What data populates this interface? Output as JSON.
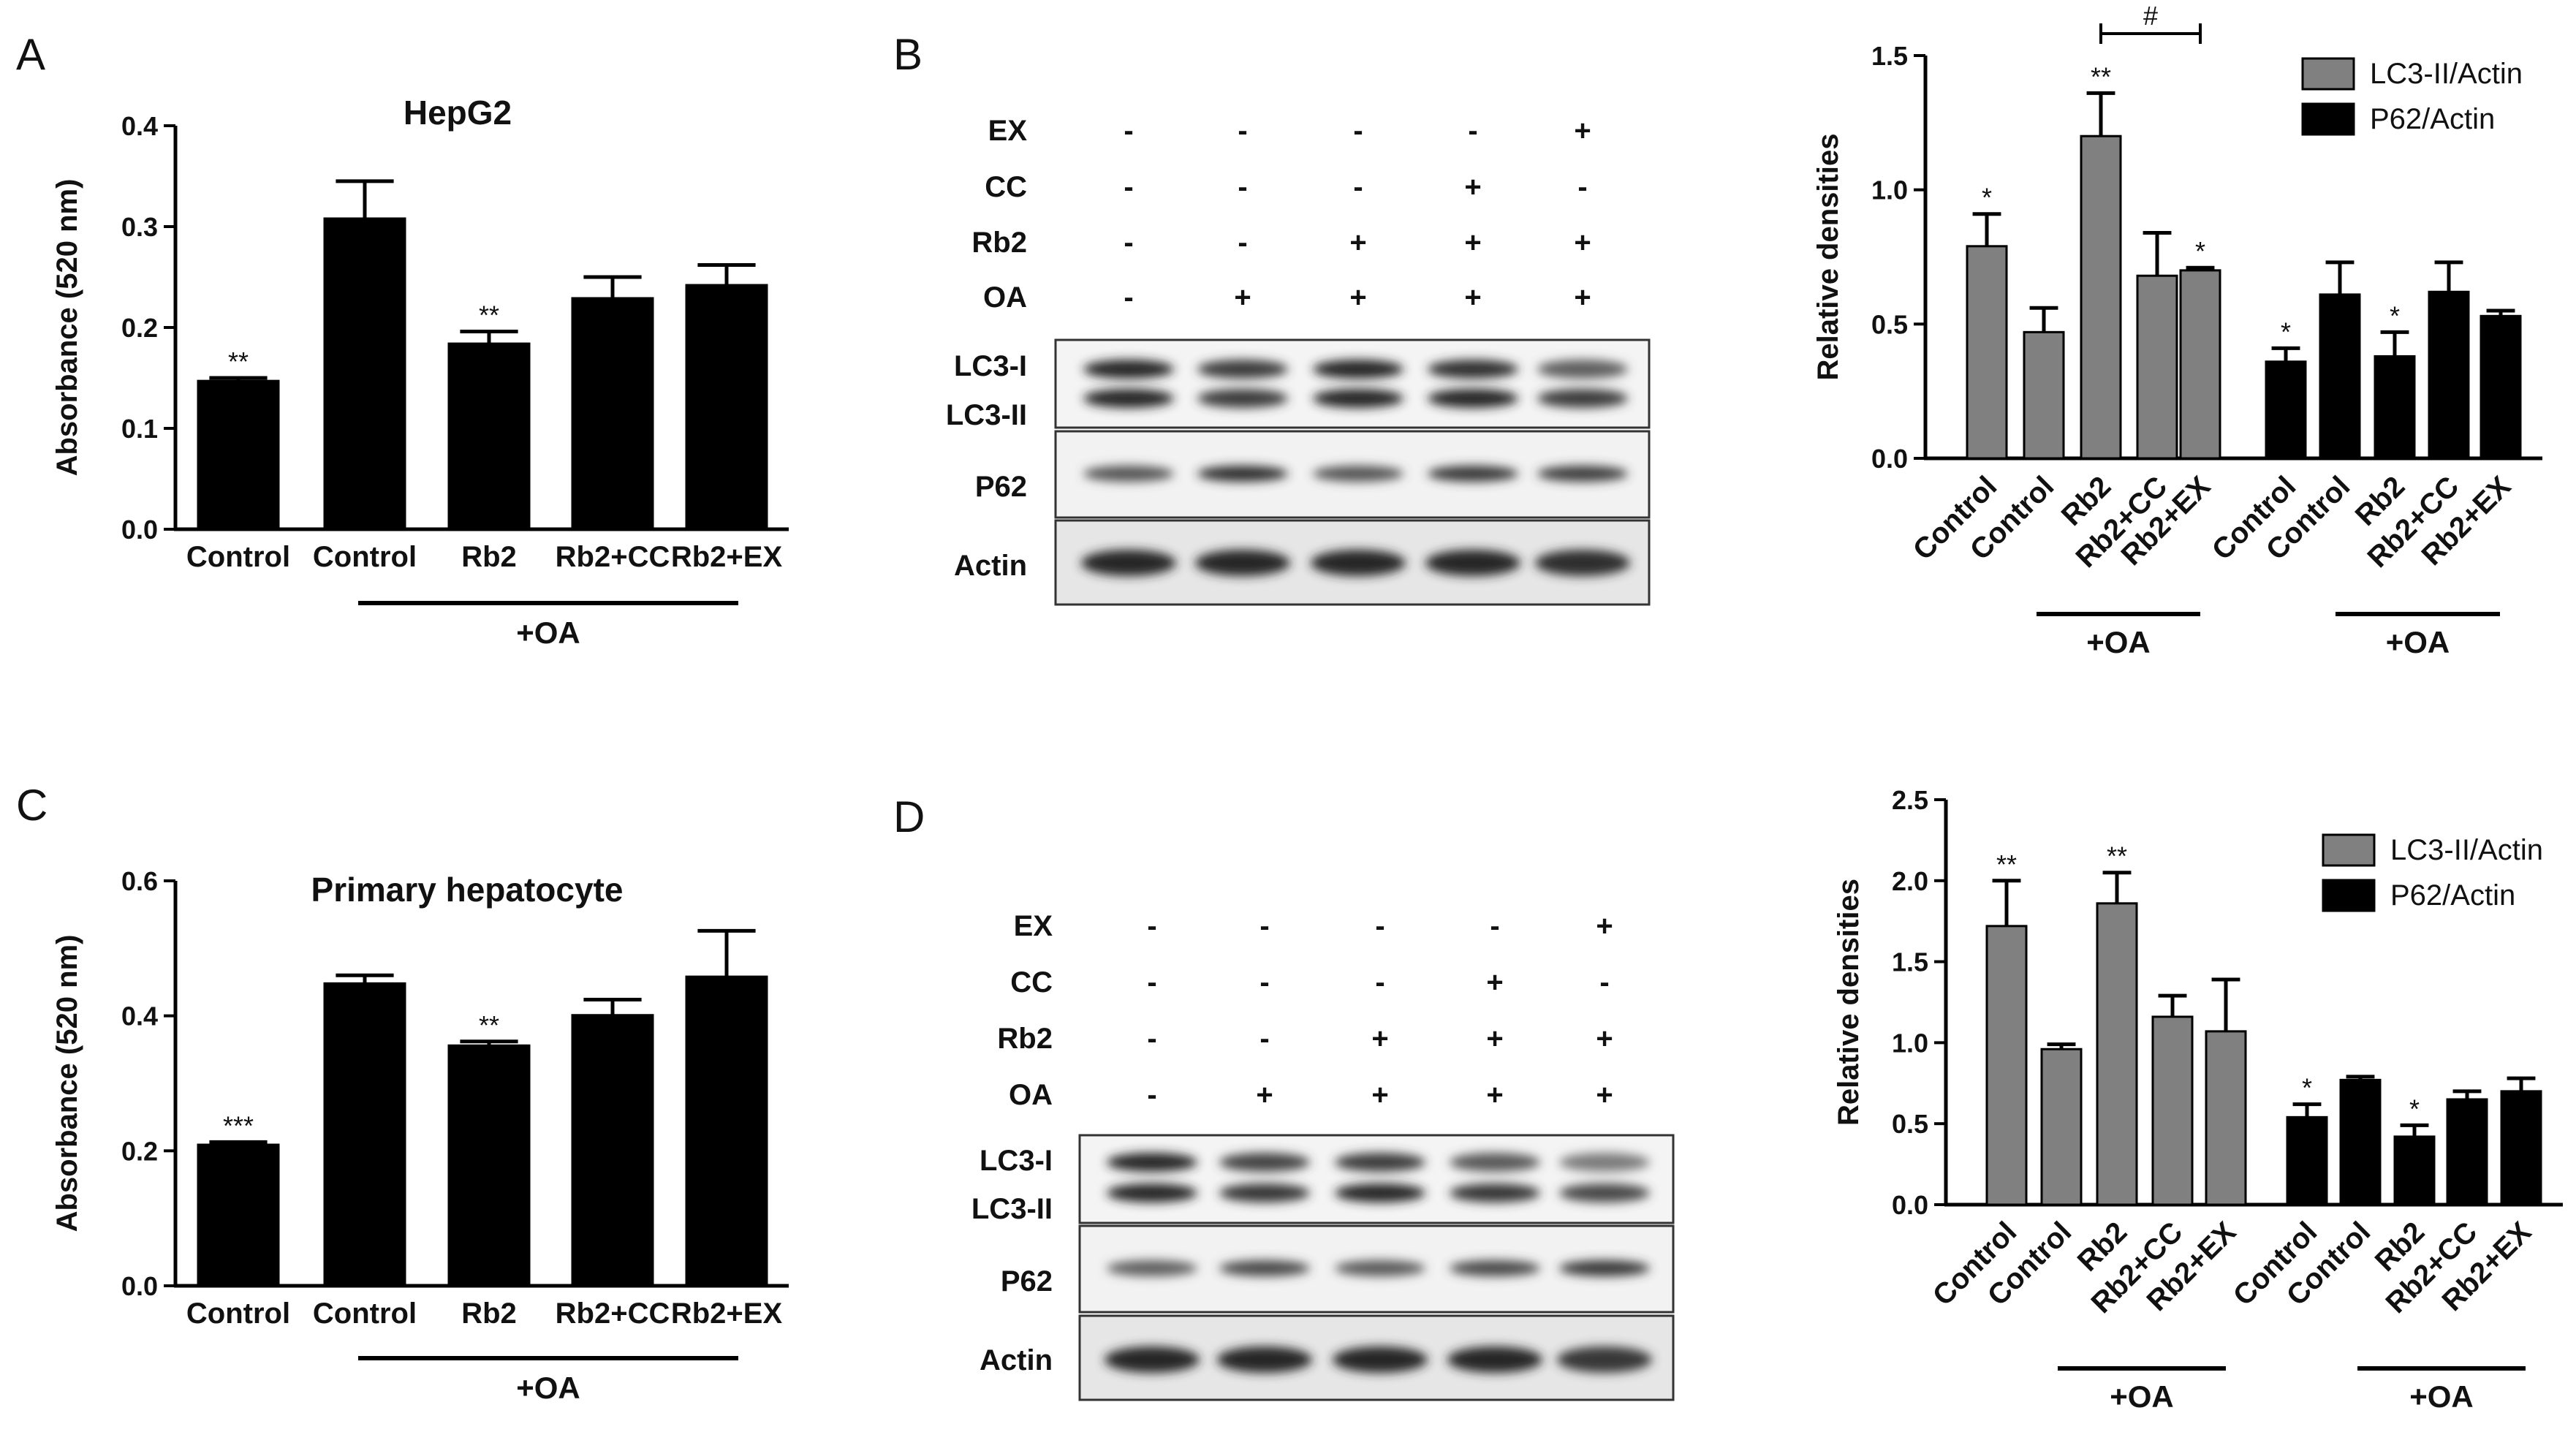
{
  "panels": {
    "A": "A",
    "B": "B",
    "C": "C",
    "D": "D"
  },
  "colors": {
    "black": "#000000",
    "gray": "#808080"
  },
  "chart_data": [
    {
      "panel": "A",
      "type": "bar",
      "title": "HepG2",
      "ylabel": "Absorbance (520 nm)",
      "ylim": [
        0,
        0.4
      ],
      "yticks": [
        "0.0",
        "0.1",
        "0.2",
        "0.3",
        "0.4"
      ],
      "categories": [
        "Control",
        "Control",
        "Rb2",
        "Rb2+CC",
        "Rb2+EX"
      ],
      "values": [
        0.147,
        0.308,
        0.184,
        0.229,
        0.242
      ],
      "errors": [
        0.003,
        0.037,
        0.012,
        0.021,
        0.02
      ],
      "significance": [
        "**",
        "",
        "**",
        "",
        ""
      ],
      "group_label": "+OA"
    },
    {
      "panel": "B",
      "type": "bar",
      "ylabel": "Relative densities",
      "ylim": [
        0,
        1.5
      ],
      "yticks": [
        "0.0",
        "0.5",
        "1.0",
        "1.5"
      ],
      "categories": [
        "Control",
        "Control",
        "Rb2",
        "Rb2+CC",
        "Rb2+EX"
      ],
      "series": [
        {
          "name": "LC3-II/Actin",
          "values": [
            0.79,
            0.47,
            1.2,
            0.68,
            0.7
          ],
          "errors": [
            0.12,
            0.09,
            0.16,
            0.16,
            0.01
          ],
          "significance": [
            "*",
            "",
            "**",
            "",
            "*"
          ]
        },
        {
          "name": "P62/Actin",
          "values": [
            0.36,
            0.61,
            0.38,
            0.62,
            0.53
          ],
          "errors": [
            0.05,
            0.12,
            0.09,
            0.11,
            0.02
          ],
          "significance": [
            "*",
            "",
            "*",
            "",
            ""
          ]
        }
      ],
      "bracket_label": "#",
      "group_label": "+OA",
      "legend": "top-right"
    },
    {
      "panel": "C",
      "type": "bar",
      "title": "Primary hepatocyte",
      "ylabel": "Absorbance (520 nm)",
      "ylim": [
        0,
        0.6
      ],
      "yticks": [
        "0.0",
        "0.2",
        "0.4",
        "0.6"
      ],
      "categories": [
        "Control",
        "Control",
        "Rb2",
        "Rb2+CC",
        "Rb2+EX"
      ],
      "values": [
        0.209,
        0.448,
        0.356,
        0.401,
        0.458
      ],
      "errors": [
        0.004,
        0.012,
        0.006,
        0.023,
        0.068
      ],
      "significance": [
        "***",
        "",
        "**",
        "",
        ""
      ],
      "group_label": "+OA"
    },
    {
      "panel": "D",
      "type": "bar",
      "ylabel": "Relative densities",
      "ylim": [
        0,
        2.5
      ],
      "yticks": [
        "0.0",
        "0.5",
        "1.0",
        "1.5",
        "2.0",
        "2.5"
      ],
      "categories": [
        "Control",
        "Control",
        "Rb2",
        "Rb2+CC",
        "Rb2+EX"
      ],
      "series": [
        {
          "name": "LC3-II/Actin",
          "values": [
            1.72,
            0.96,
            1.86,
            1.16,
            1.07
          ],
          "errors": [
            0.28,
            0.03,
            0.19,
            0.13,
            0.32
          ],
          "significance": [
            "**",
            "",
            "**",
            "",
            ""
          ]
        },
        {
          "name": "P62/Actin",
          "values": [
            0.54,
            0.77,
            0.42,
            0.65,
            0.7
          ],
          "errors": [
            0.08,
            0.02,
            0.07,
            0.05,
            0.08
          ],
          "significance": [
            "*",
            "",
            "*",
            "",
            ""
          ]
        }
      ],
      "group_label": "+OA",
      "legend": "top-right"
    }
  ],
  "blots": [
    {
      "panel": "B",
      "treatments": [
        {
          "name": "EX",
          "signs": [
            "-",
            "-",
            "-",
            "-",
            "+"
          ]
        },
        {
          "name": "CC",
          "signs": [
            "-",
            "-",
            "-",
            "+",
            "-"
          ]
        },
        {
          "name": "Rb2",
          "signs": [
            "-",
            "-",
            "+",
            "+",
            "+"
          ]
        },
        {
          "name": "OA",
          "signs": [
            "-",
            "+",
            "+",
            "+",
            "+"
          ]
        }
      ],
      "bands": {
        "lc3i": "LC3-I",
        "lc3ii": "LC3-II",
        "p62": "P62",
        "actin": "Actin"
      }
    },
    {
      "panel": "D",
      "treatments": [
        {
          "name": "EX",
          "signs": [
            "-",
            "-",
            "-",
            "-",
            "+"
          ]
        },
        {
          "name": "CC",
          "signs": [
            "-",
            "-",
            "-",
            "+",
            "-"
          ]
        },
        {
          "name": "Rb2",
          "signs": [
            "-",
            "-",
            "+",
            "+",
            "+"
          ]
        },
        {
          "name": "OA",
          "signs": [
            "-",
            "+",
            "+",
            "+",
            "+"
          ]
        }
      ],
      "bands": {
        "lc3i": "LC3-I",
        "lc3ii": "LC3-II",
        "p62": "P62",
        "actin": "Actin"
      }
    }
  ]
}
